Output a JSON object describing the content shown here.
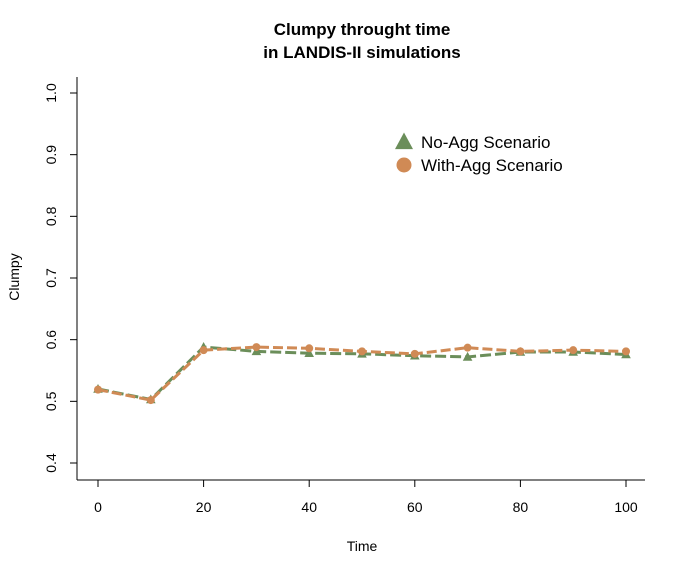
{
  "chart_data": {
    "type": "line",
    "title_line1": "Clumpy throught time",
    "title_line2": "in LANDIS-II simulations",
    "xlabel": "Time",
    "ylabel": "Clumpy",
    "xlim": [
      0,
      100
    ],
    "ylim": [
      0.4,
      1.0
    ],
    "x_ticks": [
      "0",
      "20",
      "40",
      "60",
      "80",
      "100"
    ],
    "y_ticks": [
      "0.4",
      "0.5",
      "0.6",
      "0.7",
      "0.8",
      "0.9",
      "1.0"
    ],
    "x": [
      0,
      10,
      20,
      30,
      40,
      50,
      60,
      70,
      80,
      90,
      100
    ],
    "series": [
      {
        "name": "No-Agg Scenario",
        "marker": "triangle",
        "color": "#6b8e5a",
        "values": [
          0.52,
          0.503,
          0.588,
          0.581,
          0.578,
          0.577,
          0.574,
          0.572,
          0.58,
          0.58,
          0.576
        ]
      },
      {
        "name": "With-Agg Scenario",
        "marker": "circle",
        "color": "#d08a55",
        "values": [
          0.519,
          0.502,
          0.583,
          0.588,
          0.586,
          0.581,
          0.577,
          0.587,
          0.581,
          0.583,
          0.581
        ]
      }
    ],
    "legend_position": "top-right",
    "grid": false
  }
}
